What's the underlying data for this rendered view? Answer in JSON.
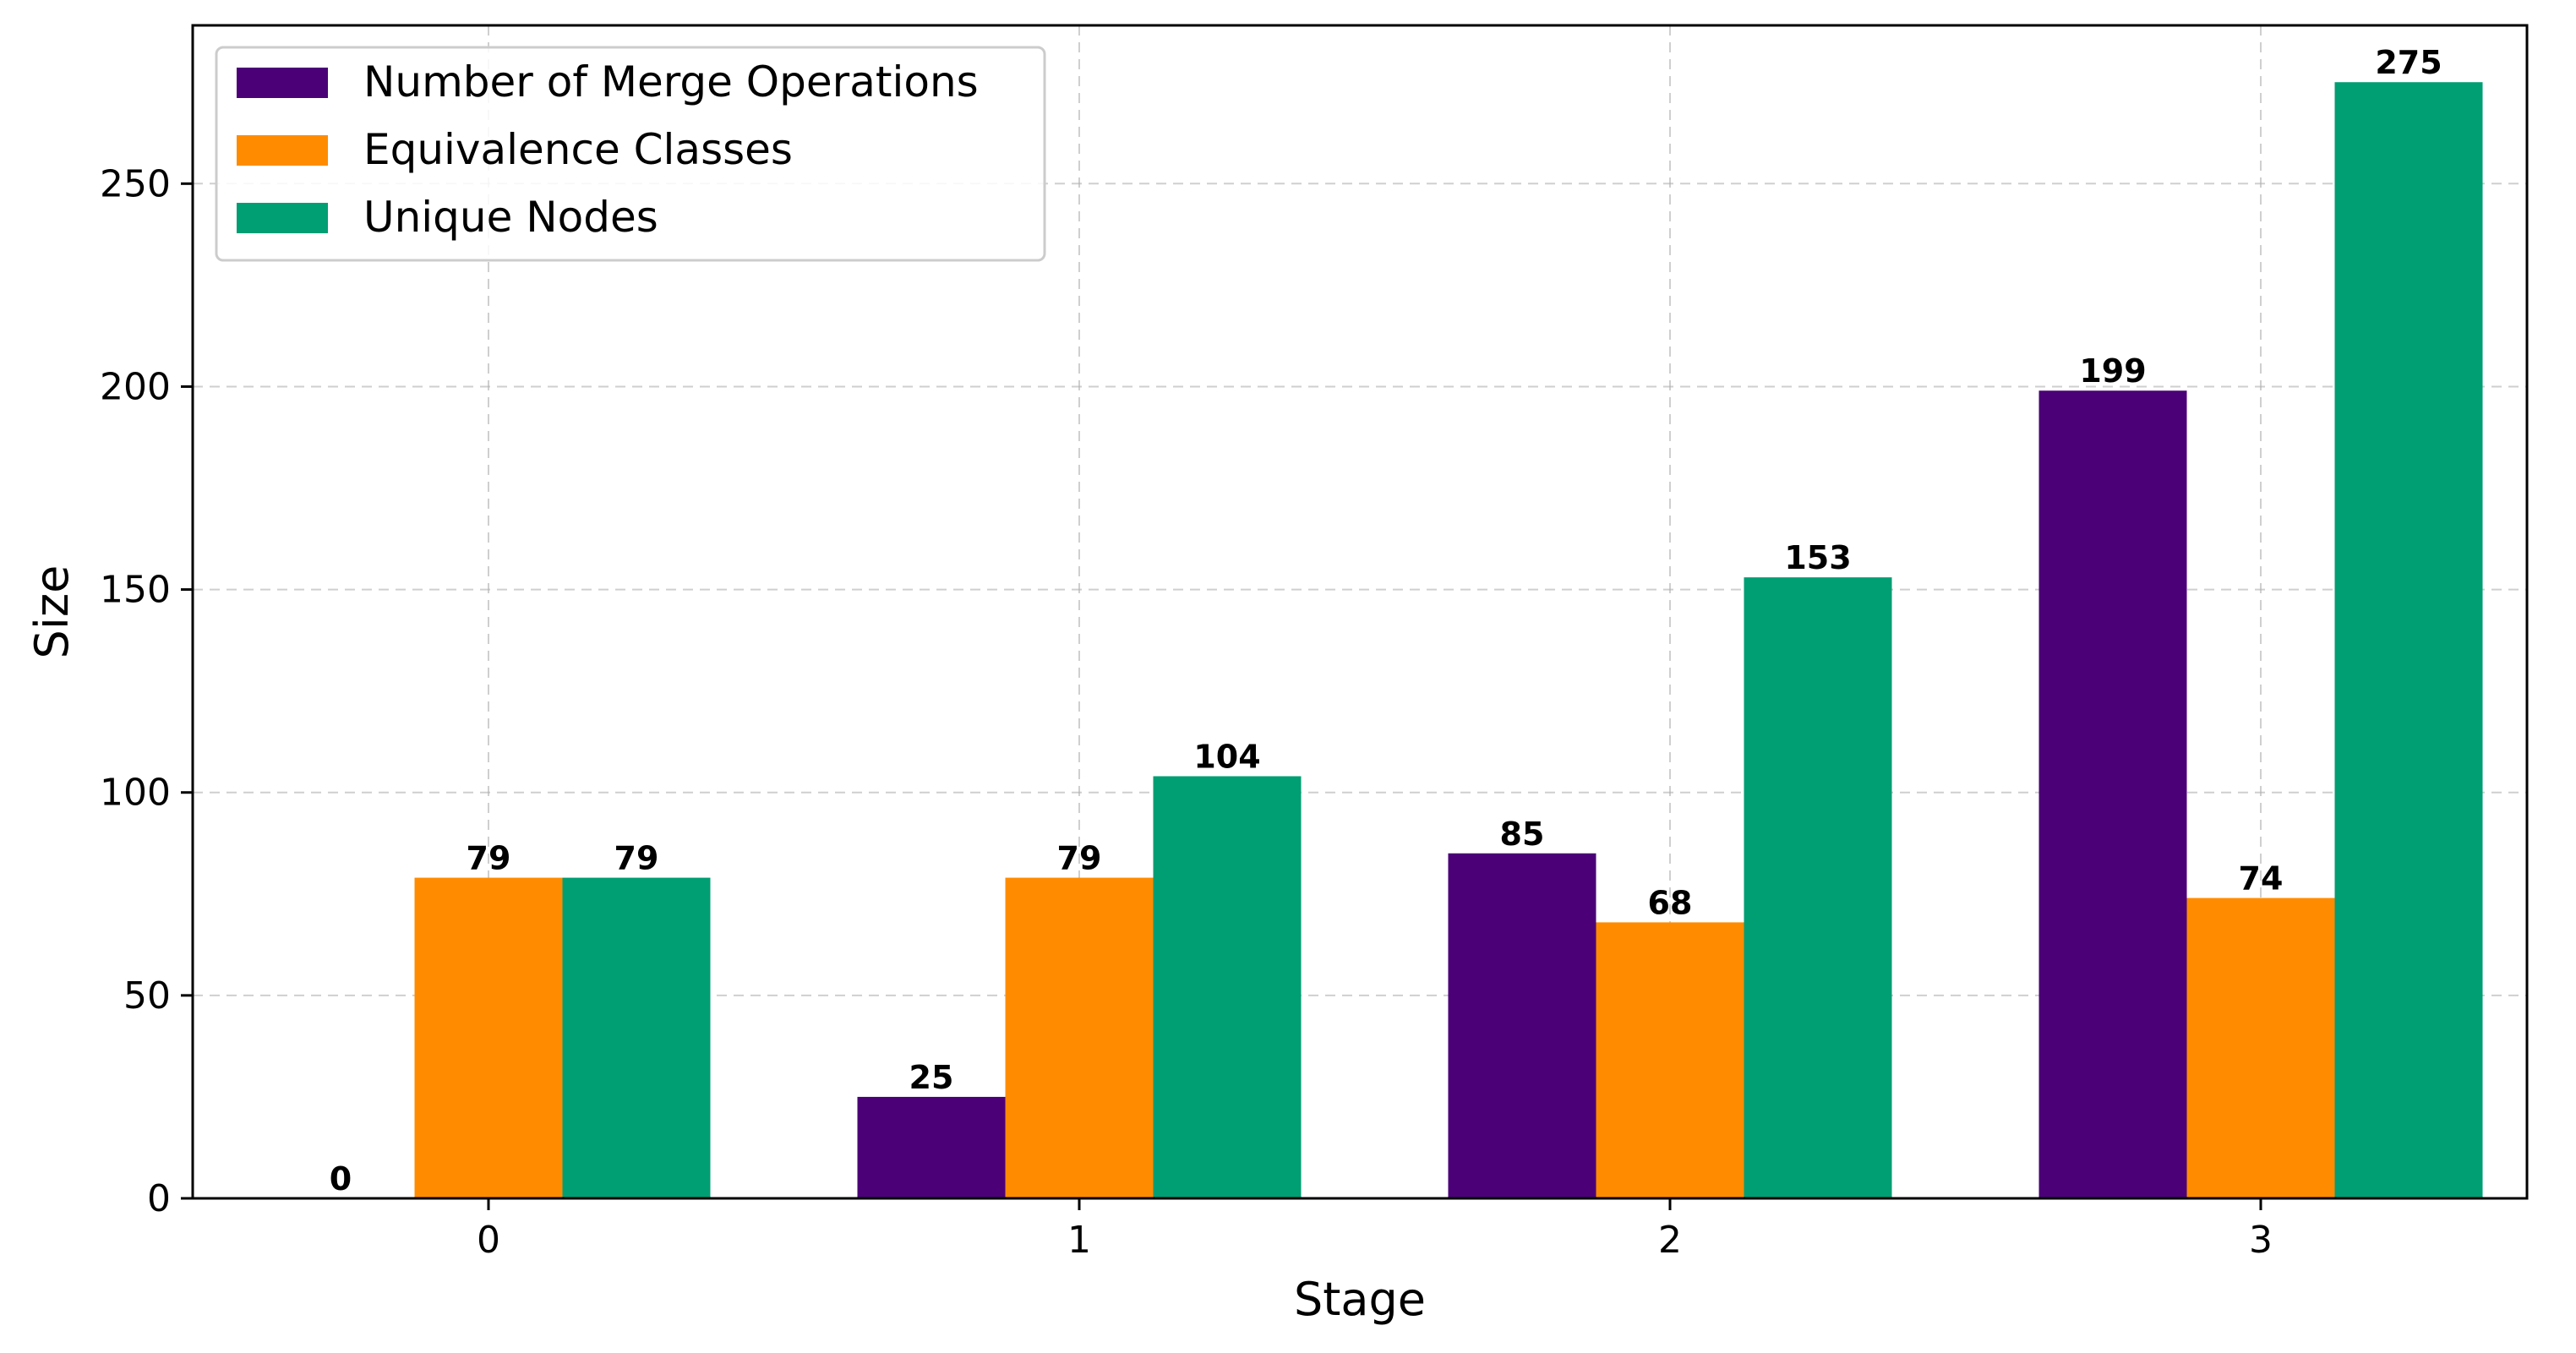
{
  "chart_data": {
    "type": "bar",
    "title": "",
    "xlabel": "Stage",
    "ylabel": "Size",
    "categories": [
      "0",
      "1",
      "2",
      "3"
    ],
    "yticks": [
      0,
      50,
      100,
      150,
      200,
      250
    ],
    "ylim": [
      0,
      289
    ],
    "grid": true,
    "legend_position": "top-left",
    "series": [
      {
        "name": "Number of Merge Operations",
        "color": "#4b0077",
        "values": [
          0,
          25,
          85,
          199
        ]
      },
      {
        "name": "Equivalence Classes",
        "color": "#ff8c00",
        "values": [
          79,
          79,
          68,
          74
        ]
      },
      {
        "name": "Unique Nodes",
        "color": "#009e73",
        "values": [
          79,
          104,
          153,
          275
        ]
      }
    ]
  }
}
